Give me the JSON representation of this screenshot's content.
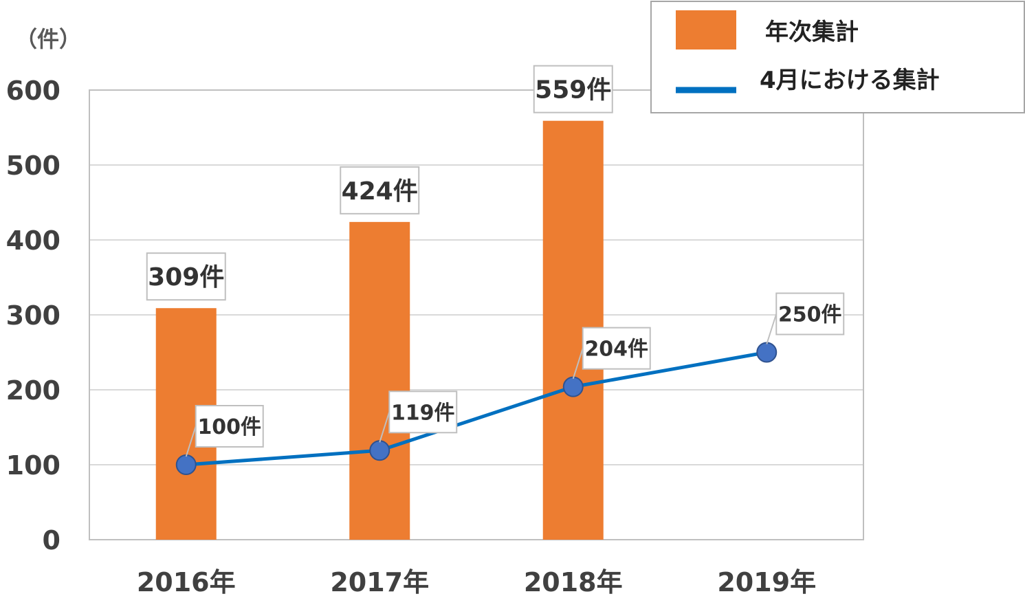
{
  "chart_data": {
    "type": "bar",
    "y_unit": "（件）",
    "categories": [
      "2016年",
      "2017年",
      "2018年",
      "2019年"
    ],
    "ylim": [
      0,
      600
    ],
    "yticks": [
      0,
      100,
      200,
      300,
      400,
      500,
      600
    ],
    "grid": true,
    "legend_position": "top-right",
    "series": [
      {
        "name": "年次集計",
        "type": "bar",
        "color": "#ED7D31",
        "values": [
          309,
          424,
          559,
          null
        ],
        "labels": [
          "309件",
          "424件",
          "559件",
          null
        ]
      },
      {
        "name": "4月における集計",
        "type": "line",
        "color": "#0070C0",
        "marker_color": "#4472C4",
        "values": [
          100,
          119,
          204,
          250
        ],
        "labels": [
          "100件",
          "119件",
          "204件",
          "250件"
        ]
      }
    ]
  }
}
